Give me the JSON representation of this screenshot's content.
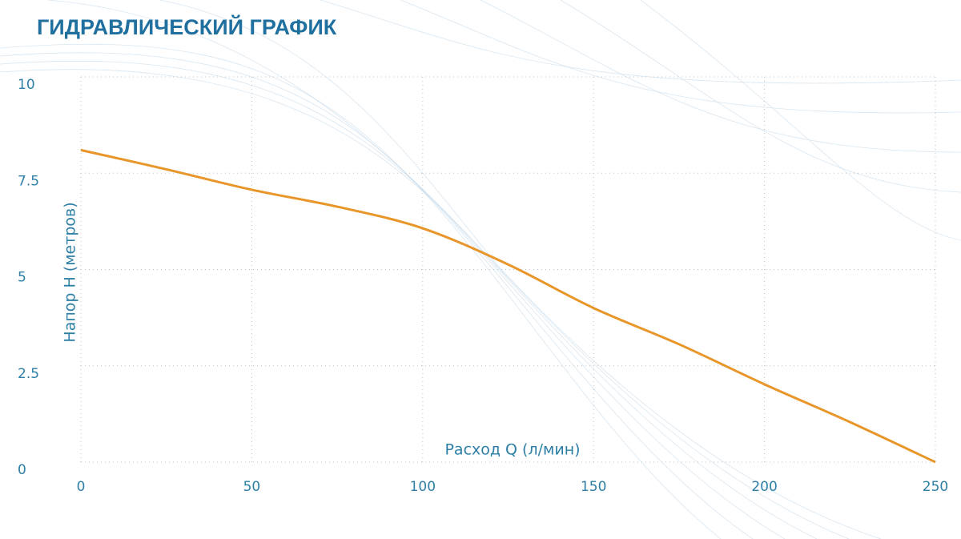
{
  "chart_data": {
    "type": "line",
    "title": "ГИДРАВЛИЧЕСКИЙ ГРАФИК",
    "x_label": "Расход Q (л/мин)",
    "y_label": "Напор Н (метров)",
    "x": [
      0,
      25,
      50,
      75,
      100,
      125,
      150,
      175,
      200,
      225,
      250
    ],
    "values": [
      8.1,
      7.6,
      7.07,
      6.63,
      6.07,
      5.13,
      4.0,
      3.06,
      2.02,
      1.04,
      0
    ],
    "color": "#e8962a",
    "xlim": [
      0,
      250
    ],
    "xticks": [
      0,
      50,
      100,
      150,
      200,
      250
    ],
    "ylim": [
      0,
      10
    ],
    "yticks": [
      0,
      2.5,
      5,
      7.5,
      10
    ],
    "grid": true
  }
}
